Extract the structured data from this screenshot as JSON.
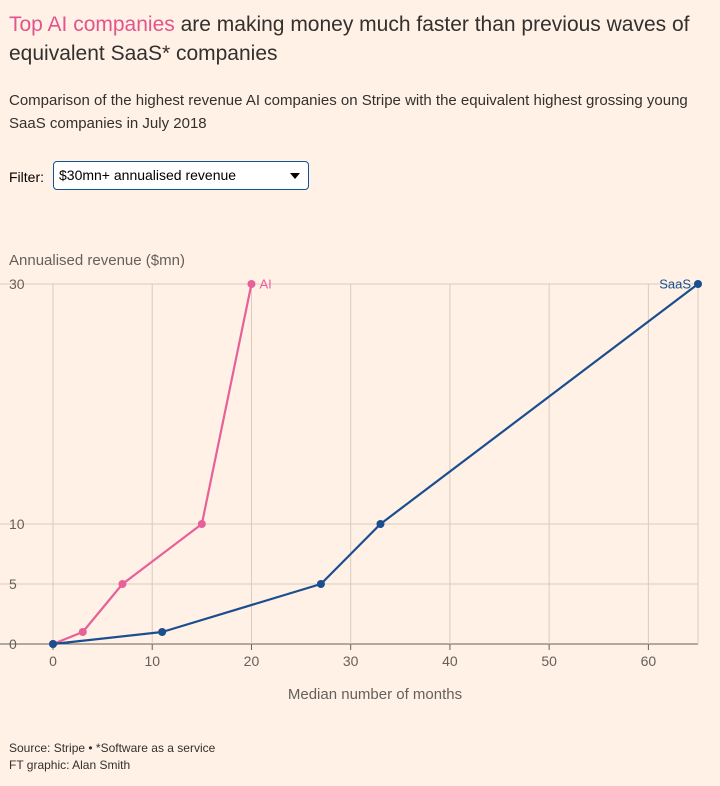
{
  "header": {
    "title_highlight": "Top AI companies",
    "title_rest": " are making money much faster than previous waves of equivalent SaaS* companies",
    "subtitle": "Comparison of the highest revenue AI companies on Stripe with the equivalent highest grossing young SaaS companies in July 2018"
  },
  "filter": {
    "label": "Filter:",
    "selected": "$30mn+ annualised revenue"
  },
  "colors": {
    "background": "#fff1e5",
    "ai": "#e8609a",
    "saas": "#1a4e8f",
    "grid": "#d9cbbf",
    "title_highlight": "#e3538d"
  },
  "chart_data": {
    "type": "line",
    "ylabel": "Annualised revenue ($mn)",
    "xlabel": "Median number of months",
    "xlim": [
      0,
      65
    ],
    "ylim": [
      0,
      30
    ],
    "xticks": [
      0,
      10,
      20,
      30,
      40,
      50,
      60
    ],
    "yticks": [
      0,
      5,
      10,
      30
    ],
    "series": [
      {
        "name": "AI",
        "color": "#e8609a",
        "x": [
          0,
          3,
          7,
          15,
          20
        ],
        "y": [
          0,
          1,
          5,
          10,
          30
        ]
      },
      {
        "name": "SaaS",
        "color": "#1a4e8f",
        "x": [
          0,
          11,
          27,
          33,
          65
        ],
        "y": [
          0,
          1,
          5,
          10,
          30
        ]
      }
    ]
  },
  "footer": {
    "source": "Source: Stripe • *Software as a service",
    "credit": "FT graphic: Alan Smith"
  }
}
